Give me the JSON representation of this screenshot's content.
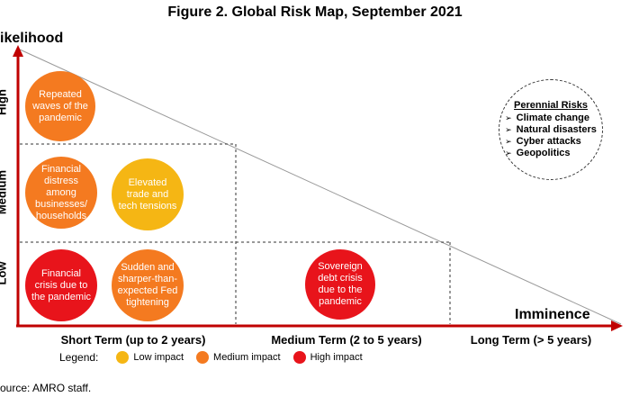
{
  "title": "Figure 2. Global Risk Map, September 2021",
  "y_axis": {
    "label": "ikelihood",
    "ticks": [
      "High",
      "Medium",
      "Low"
    ]
  },
  "x_axis": {
    "label": "Imminence",
    "ticks": [
      "Short Term (up to 2 years)",
      "Medium Term (2 to 5 years)",
      "Long Term (> 5 years)"
    ]
  },
  "risks": [
    {
      "text": "Repeated waves of the pandemic",
      "impact": "medium",
      "likelihood": "High",
      "term": "Short Term"
    },
    {
      "text": "Financial distress among businesses/ households",
      "impact": "medium",
      "likelihood": "Medium",
      "term": "Short Term"
    },
    {
      "text": "Elevated trade and tech tensions",
      "impact": "low",
      "likelihood": "Medium",
      "term": "Short Term"
    },
    {
      "text": "Financial crisis due to the pandemic",
      "impact": "high",
      "likelihood": "Low",
      "term": "Short Term"
    },
    {
      "text": "Sudden and sharper-than-expected Fed tightening",
      "impact": "medium",
      "likelihood": "Low",
      "term": "Short Term"
    },
    {
      "text": "Sovereign debt crisis due to the pandemic",
      "impact": "high",
      "likelihood": "Low",
      "term": "Medium Term"
    }
  ],
  "perennial": {
    "title": "Perennial Risks",
    "items": [
      "Climate change",
      "Natural disasters",
      "Cyber attacks",
      "Geopolitics"
    ]
  },
  "legend": {
    "label": "Legend:",
    "items": [
      {
        "label": "Low impact",
        "color": "#f5b614"
      },
      {
        "label": "Medium impact",
        "color": "#f47a20"
      },
      {
        "label": "High impact",
        "color": "#e8141b"
      }
    ]
  },
  "source": "ource: AMRO staff.",
  "colors": {
    "axis": "#c00000",
    "low": "#f5b614",
    "medium": "#f47a20",
    "high": "#e8141b"
  }
}
